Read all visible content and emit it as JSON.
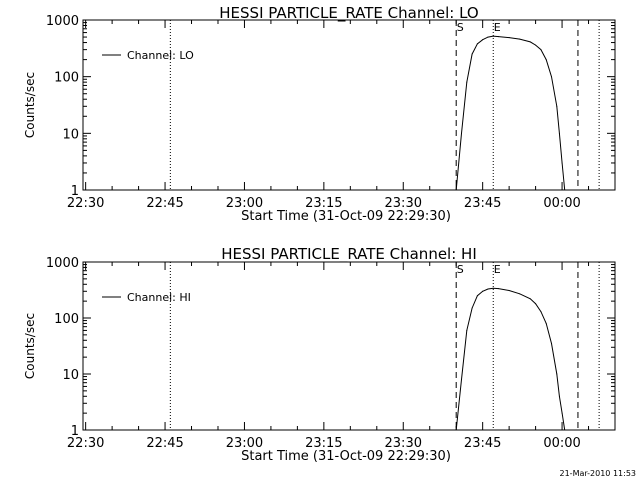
{
  "footer": {
    "timestamp": "21-Mar-2010 11:53"
  },
  "chart_data": [
    {
      "type": "line",
      "title": "HESSI PARTICLE_RATE Channel: LO",
      "xlabel": "Start Time (31-Oct-09 22:29:30)",
      "ylabel": "Counts/sec",
      "yscale": "log",
      "xlim": [
        "22:29:30",
        "00:10:00"
      ],
      "ylim": [
        1,
        1000
      ],
      "x_ticks": [
        "22:30",
        "22:45",
        "23:00",
        "23:15",
        "23:30",
        "23:45",
        "00:00"
      ],
      "y_ticks": [
        "1",
        "10",
        "100",
        "1000"
      ],
      "legend": {
        "position": "top-left",
        "entries": [
          "Channel: LO"
        ]
      },
      "vlines": [
        {
          "time": "22:46",
          "style": "dotted"
        },
        {
          "time": "23:47",
          "style": "dotted",
          "label": "E"
        },
        {
          "time": "00:07",
          "style": "dotted"
        },
        {
          "time": "23:40",
          "style": "dashed",
          "label": "S"
        },
        {
          "time": "00:03",
          "style": "dashed"
        }
      ],
      "series": [
        {
          "name": "Channel: LO",
          "x": [
            "23:40",
            "23:41",
            "23:42",
            "23:43",
            "23:44",
            "23:45",
            "23:46",
            "23:47",
            "23:48",
            "23:50",
            "23:52",
            "23:54",
            "23:55",
            "23:56",
            "23:57",
            "23:58",
            "23:59",
            "23:59:30",
            "00:00",
            "00:00:30"
          ],
          "y": [
            1,
            10,
            80,
            250,
            380,
            450,
            500,
            520,
            510,
            490,
            460,
            410,
            360,
            300,
            200,
            100,
            30,
            10,
            3,
            1
          ]
        }
      ]
    },
    {
      "type": "line",
      "title": "HESSI PARTICLE_RATE Channel: HI",
      "xlabel": "Start Time (31-Oct-09 22:29:30)",
      "ylabel": "Counts/sec",
      "yscale": "log",
      "xlim": [
        "22:29:30",
        "00:10:00"
      ],
      "ylim": [
        1,
        1000
      ],
      "x_ticks": [
        "22:30",
        "22:45",
        "23:00",
        "23:15",
        "23:30",
        "23:45",
        "00:00"
      ],
      "y_ticks": [
        "1",
        "10",
        "100",
        "1000"
      ],
      "legend": {
        "position": "top-left",
        "entries": [
          "Channel: HI"
        ]
      },
      "vlines": [
        {
          "time": "22:46",
          "style": "dotted"
        },
        {
          "time": "23:47",
          "style": "dotted",
          "label": "E"
        },
        {
          "time": "00:07",
          "style": "dotted"
        },
        {
          "time": "23:40",
          "style": "dashed",
          "label": "S"
        },
        {
          "time": "00:03",
          "style": "dashed"
        }
      ],
      "series": [
        {
          "name": "Channel: HI",
          "x": [
            "23:40",
            "23:41",
            "23:42",
            "23:43",
            "23:44",
            "23:45",
            "23:46",
            "23:47",
            "23:48",
            "23:50",
            "23:52",
            "23:54",
            "23:55",
            "23:56",
            "23:57",
            "23:58",
            "23:59",
            "23:59:30",
            "00:00",
            "00:00:30"
          ],
          "y": [
            1,
            8,
            60,
            150,
            250,
            300,
            330,
            340,
            335,
            310,
            270,
            220,
            180,
            130,
            80,
            35,
            10,
            4,
            2,
            1
          ]
        }
      ]
    }
  ]
}
